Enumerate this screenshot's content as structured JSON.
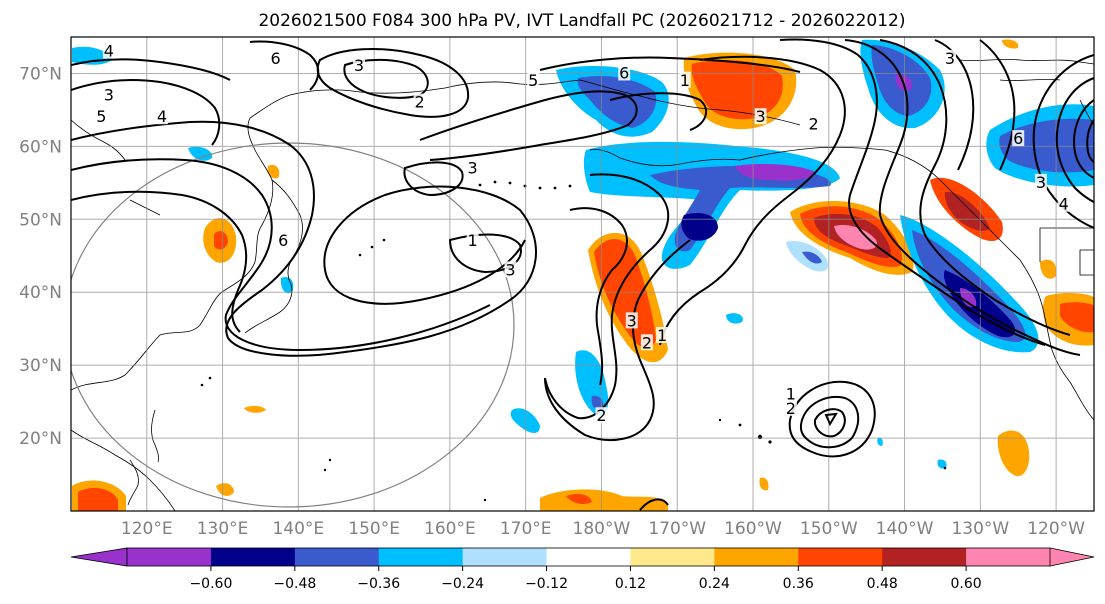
{
  "title": "2026021500 F084 300 hPa PV, IVT Landfall PC (2026021712 - 2026022012)",
  "map": {
    "lon_range": [
      110,
      -115
    ],
    "lat_range": [
      10,
      75
    ],
    "lon_ticks": [
      "120°E",
      "130°E",
      "140°E",
      "150°E",
      "160°E",
      "170°E",
      "180°W",
      "170°W",
      "160°W",
      "150°W",
      "140°W",
      "130°W",
      "120°W"
    ],
    "lat_ticks": [
      "20°N",
      "30°N",
      "40°N",
      "50°N",
      "60°N",
      "70°N"
    ],
    "gridlines": true,
    "highlight_circle": {
      "center": [
        140,
        40
      ],
      "edge_color": "#808080"
    }
  },
  "pv_contours": {
    "color": "#000000",
    "labels": [
      {
        "text": "6",
        "lon": 137,
        "lat": 72
      },
      {
        "text": "3",
        "lon": 148,
        "lat": 71
      },
      {
        "text": "2",
        "lon": 156,
        "lat": 66
      },
      {
        "text": "5",
        "lon": 171,
        "lat": 69
      },
      {
        "text": "6",
        "lon": -177,
        "lat": 70
      },
      {
        "text": "3",
        "lon": -134,
        "lat": 72
      },
      {
        "text": "1",
        "lon": -169,
        "lat": 69
      },
      {
        "text": "3",
        "lon": -159,
        "lat": 64
      },
      {
        "text": "2",
        "lon": -152,
        "lat": 63
      },
      {
        "text": "3",
        "lon": 115,
        "lat": 67
      },
      {
        "text": "4",
        "lon": 122,
        "lat": 64
      },
      {
        "text": "5",
        "lon": 114,
        "lat": 64
      },
      {
        "text": "4",
        "lon": 115,
        "lat": 73
      },
      {
        "text": "3",
        "lon": 163,
        "lat": 57
      },
      {
        "text": "1",
        "lon": 163,
        "lat": 47
      },
      {
        "text": "3",
        "lon": 168,
        "lat": 43
      },
      {
        "text": "6",
        "lon": 138,
        "lat": 47
      },
      {
        "text": "3",
        "lon": -176,
        "lat": 36
      },
      {
        "text": "2",
        "lon": -174,
        "lat": 33
      },
      {
        "text": "1",
        "lon": -172,
        "lat": 34
      },
      {
        "text": "1",
        "lon": -155,
        "lat": 26
      },
      {
        "text": "2",
        "lon": -155,
        "lat": 24
      },
      {
        "text": "6",
        "lon": -125,
        "lat": 61
      },
      {
        "text": "3",
        "lon": -122,
        "lat": 55
      },
      {
        "text": "4",
        "lon": -119,
        "lat": 52
      },
      {
        "text": "2",
        "lon": -180,
        "lat": 23
      }
    ]
  },
  "colorbar": {
    "colors": [
      "#9932cc",
      "#00008b",
      "#3a5bcd",
      "#00bfff",
      "#b0e0ff",
      "#ffffff",
      "#ffe98a",
      "#ffa500",
      "#ff4500",
      "#b22222",
      "#ff85b0"
    ],
    "tick_labels": [
      "−0.60",
      "−0.48",
      "−0.36",
      "−0.24",
      "−0.12",
      "0.12",
      "0.24",
      "0.36",
      "0.48",
      "0.60"
    ],
    "extend": "both"
  }
}
